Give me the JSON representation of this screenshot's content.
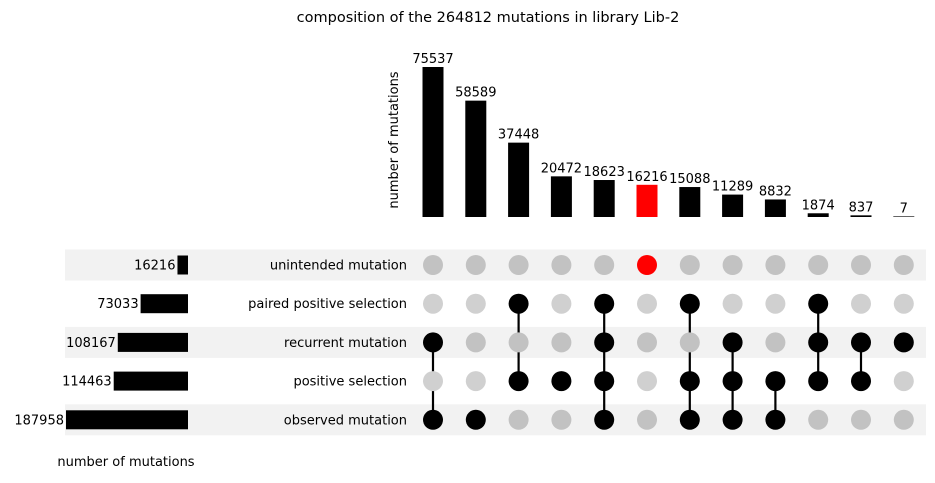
{
  "chart_data": {
    "type": "upset",
    "title": "composition of the 264812 mutations in library Lib-2",
    "intersection_ylabel": "number of mutations",
    "set_size_xlabel": "number of mutations",
    "sets": [
      {
        "name": "unintended mutation",
        "size": 16216
      },
      {
        "name": "paired positive selection",
        "size": 73033
      },
      {
        "name": "recurrent mutation",
        "size": 108167
      },
      {
        "name": "positive selection",
        "size": 114463
      },
      {
        "name": "observed mutation",
        "size": 187958
      }
    ],
    "intersections": [
      {
        "value": 75537,
        "members": [
          2,
          4
        ]
      },
      {
        "value": 58589,
        "members": [
          4
        ]
      },
      {
        "value": 37448,
        "members": [
          1,
          3
        ]
      },
      {
        "value": 20472,
        "members": [
          3
        ]
      },
      {
        "value": 18623,
        "members": [
          1,
          2,
          3,
          4
        ]
      },
      {
        "value": 16216,
        "members": [
          0
        ],
        "highlight": true
      },
      {
        "value": 15088,
        "members": [
          1,
          3,
          4
        ]
      },
      {
        "value": 11289,
        "members": [
          2,
          3,
          4
        ]
      },
      {
        "value": 8832,
        "members": [
          3,
          4
        ]
      },
      {
        "value": 1874,
        "members": [
          1,
          2,
          3
        ]
      },
      {
        "value": 837,
        "members": [
          2,
          3
        ]
      },
      {
        "value": 7,
        "members": [
          2
        ]
      }
    ],
    "colors": {
      "bar": "#000000",
      "highlight": "#ff0000",
      "dot_active": "#000000",
      "dot_inactive_light": "#d0d0d0",
      "dot_inactive_dark": "#c2c2c2",
      "row_stripe": "#f2f2f2"
    }
  }
}
